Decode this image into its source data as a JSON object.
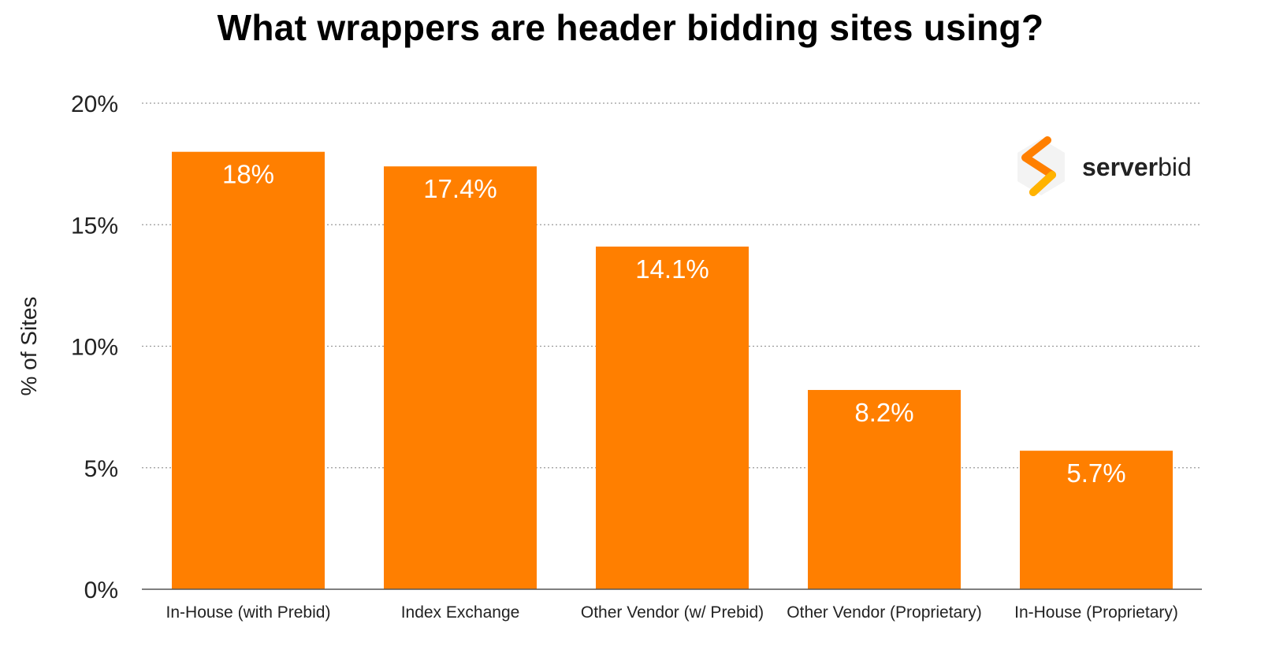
{
  "chart_data": {
    "type": "bar",
    "title": "What wrappers are header bidding sites using?",
    "ylabel": "% of Sites",
    "xlabel": "",
    "categories": [
      "In-House (with Prebid)",
      "Index Exchange",
      "Other Vendor (w/ Prebid)",
      "Other Vendor (Proprietary)",
      "In-House (Proprietary)"
    ],
    "values": [
      18,
      17.4,
      14.1,
      8.2,
      5.7
    ],
    "value_labels": [
      "18%",
      "17.4%",
      "14.1%",
      "8.2%",
      "5.7%"
    ],
    "ylim": [
      0,
      20
    ],
    "yticks": [
      0,
      5,
      10,
      15,
      20
    ],
    "ytick_labels": [
      "0%",
      "5%",
      "10%",
      "15%",
      "20%"
    ],
    "grid": true,
    "bar_color": "#FF7F00",
    "legend": "none"
  },
  "brand": {
    "name_bold": "server",
    "name_light": "bid",
    "icon": "serverbid-logo-icon",
    "colors": [
      "#FF7F00",
      "#FFB300"
    ]
  }
}
